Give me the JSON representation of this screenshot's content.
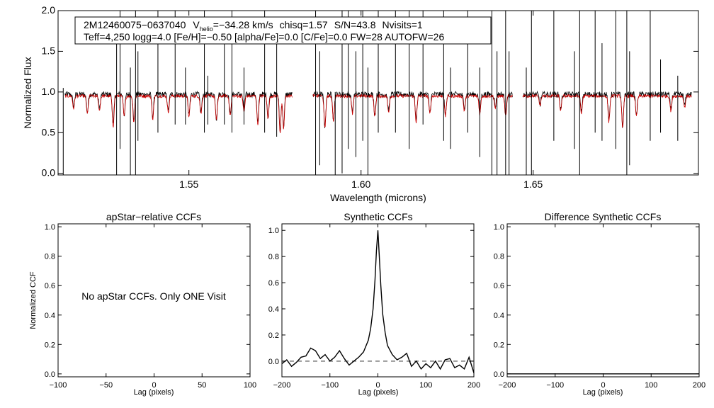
{
  "colors": {
    "observed": "#000000",
    "model": "#cc0000",
    "dashed": "#555555"
  },
  "chart_data": [
    {
      "type": "line",
      "id": "spectrum",
      "xlabel": "Wavelength (microns)",
      "ylabel": "Normalized Flux",
      "xlim": [
        1.512,
        1.698
      ],
      "ylim": [
        -0.02,
        2.0
      ],
      "xticks": [
        1.55,
        1.6,
        1.65
      ],
      "xtick_labels": [
        "1.55",
        "1.60",
        "1.65"
      ],
      "yticks": [
        0.0,
        0.5,
        1.0,
        1.5,
        2.0
      ],
      "ytick_labels": [
        "0.0",
        "0.5",
        "1.0",
        "1.5",
        "2.0"
      ],
      "info": {
        "star_id": "2M12460075−0637040",
        "vhelio_prefix": "V",
        "vhelio_sub": "helio",
        "vhelio_value": "=−34.28 km/s",
        "chisq": "chisq=1.57",
        "sn": "S/N=43.8",
        "nvisits": "Nvisits=1",
        "line2": "Teff=4,250 logg=4.0 [Fe/H]=−0.50 [alpha/Fe]=0.0 [C/Fe]=0.0 FW=28 AUTOFW=26"
      },
      "segments": [
        [
          1.514,
          1.58
        ],
        [
          1.586,
          1.644
        ],
        [
          1.647,
          1.696
        ]
      ],
      "series": [
        {
          "name": "observed",
          "continuum": 0.97
        },
        {
          "name": "model",
          "continuum": 0.95
        }
      ],
      "absorption_lines": [
        {
          "x": 1.5165,
          "depth": 0.15
        },
        {
          "x": 1.5205,
          "depth": 0.22
        },
        {
          "x": 1.524,
          "depth": 0.18
        },
        {
          "x": 1.528,
          "depth": 0.38
        },
        {
          "x": 1.5312,
          "depth": 0.25
        },
        {
          "x": 1.534,
          "depth": 0.32
        },
        {
          "x": 1.5395,
          "depth": 0.28
        },
        {
          "x": 1.544,
          "depth": 0.2
        },
        {
          "x": 1.55,
          "depth": 0.26
        },
        {
          "x": 1.5535,
          "depth": 0.22
        },
        {
          "x": 1.558,
          "depth": 0.3
        },
        {
          "x": 1.562,
          "depth": 0.24
        },
        {
          "x": 1.566,
          "depth": 0.2
        },
        {
          "x": 1.57,
          "depth": 0.35
        },
        {
          "x": 1.573,
          "depth": 0.28
        },
        {
          "x": 1.5765,
          "depth": 0.45
        },
        {
          "x": 1.5775,
          "depth": 0.4
        },
        {
          "x": 1.5895,
          "depth": 0.4
        },
        {
          "x": 1.592,
          "depth": 0.3
        },
        {
          "x": 1.5975,
          "depth": 0.22
        },
        {
          "x": 1.604,
          "depth": 0.25
        },
        {
          "x": 1.608,
          "depth": 0.2
        },
        {
          "x": 1.616,
          "depth": 0.32
        },
        {
          "x": 1.62,
          "depth": 0.22
        },
        {
          "x": 1.6245,
          "depth": 0.25
        },
        {
          "x": 1.63,
          "depth": 0.18
        },
        {
          "x": 1.6345,
          "depth": 0.22
        },
        {
          "x": 1.639,
          "depth": 0.15
        },
        {
          "x": 1.642,
          "depth": 0.25
        },
        {
          "x": 1.652,
          "depth": 0.12
        },
        {
          "x": 1.658,
          "depth": 0.18
        },
        {
          "x": 1.664,
          "depth": 0.22
        },
        {
          "x": 1.672,
          "depth": 0.32
        },
        {
          "x": 1.676,
          "depth": 0.4
        },
        {
          "x": 1.68,
          "depth": 0.25
        },
        {
          "x": 1.69,
          "depth": 0.18
        },
        {
          "x": 1.694,
          "depth": 0.14
        }
      ],
      "spikes": [
        {
          "x": 1.5135,
          "low": -0.05,
          "high": 1.05
        },
        {
          "x": 1.529,
          "low": -0.05,
          "high": 1.7
        },
        {
          "x": 1.53,
          "low": 0.3,
          "high": 2.0
        },
        {
          "x": 1.533,
          "low": -0.05,
          "high": 1.3
        },
        {
          "x": 1.5345,
          "low": -0.05,
          "high": 2.0
        },
        {
          "x": 1.5352,
          "low": 0.4,
          "high": 1.5
        },
        {
          "x": 1.541,
          "low": 0.5,
          "high": 2.0
        },
        {
          "x": 1.546,
          "low": 0.6,
          "high": 2.0
        },
        {
          "x": 1.549,
          "low": 0.6,
          "high": 1.3
        },
        {
          "x": 1.5545,
          "low": 0.5,
          "high": 2.0
        },
        {
          "x": 1.5555,
          "low": 0.6,
          "high": 1.2
        },
        {
          "x": 1.5603,
          "low": 0.6,
          "high": 1.7
        },
        {
          "x": 1.5625,
          "low": 0.5,
          "high": 2.0
        },
        {
          "x": 1.566,
          "low": 0.6,
          "high": 1.3
        },
        {
          "x": 1.572,
          "low": 0.5,
          "high": 2.0
        },
        {
          "x": 1.5755,
          "low": 0.45,
          "high": 1.7
        },
        {
          "x": 1.5868,
          "low": -0.05,
          "high": 2.0
        },
        {
          "x": 1.588,
          "low": 0.1,
          "high": 1.5
        },
        {
          "x": 1.5925,
          "low": -0.05,
          "high": 1.0
        },
        {
          "x": 1.5945,
          "low": 0.0,
          "high": 2.0
        },
        {
          "x": 1.5963,
          "low": 0.3,
          "high": 2.0
        },
        {
          "x": 1.5985,
          "low": 0.2,
          "high": 1.5
        },
        {
          "x": 1.6005,
          "low": 0.4,
          "high": 2.0
        },
        {
          "x": 1.602,
          "low": -0.05,
          "high": 1.3
        },
        {
          "x": 1.605,
          "low": 0.5,
          "high": 2.0
        },
        {
          "x": 1.61,
          "low": 0.5,
          "high": 2.0
        },
        {
          "x": 1.614,
          "low": 0.3,
          "high": 2.0
        },
        {
          "x": 1.618,
          "low": 0.6,
          "high": 2.0
        },
        {
          "x": 1.624,
          "low": 0.4,
          "high": 2.0
        },
        {
          "x": 1.626,
          "low": 0.3,
          "high": 1.3
        },
        {
          "x": 1.631,
          "low": 0.5,
          "high": 2.0
        },
        {
          "x": 1.6345,
          "low": 0.2,
          "high": 1.3
        },
        {
          "x": 1.638,
          "low": -0.05,
          "high": 2.0
        },
        {
          "x": 1.6395,
          "low": -0.05,
          "high": 1.5
        },
        {
          "x": 1.642,
          "low": -0.05,
          "high": 2.0
        },
        {
          "x": 1.643,
          "low": -0.05,
          "high": 1.5
        },
        {
          "x": 1.648,
          "low": -0.05,
          "high": 1.3
        },
        {
          "x": 1.6495,
          "low": -0.05,
          "high": 2.0
        },
        {
          "x": 1.656,
          "low": 0.4,
          "high": 2.0
        },
        {
          "x": 1.662,
          "low": 0.3,
          "high": 1.5
        },
        {
          "x": 1.6635,
          "low": -0.05,
          "high": 2.0
        },
        {
          "x": 1.668,
          "low": 0.5,
          "high": 2.0
        },
        {
          "x": 1.67,
          "low": 0.4,
          "high": 1.6
        },
        {
          "x": 1.674,
          "low": 0.3,
          "high": 2.0
        },
        {
          "x": 1.6772,
          "low": -0.05,
          "high": 2.0
        },
        {
          "x": 1.678,
          "low": 0.1,
          "high": 1.5
        },
        {
          "x": 1.684,
          "low": 0.4,
          "high": 2.0
        },
        {
          "x": 1.687,
          "low": 0.5,
          "high": 1.4
        },
        {
          "x": 1.692,
          "low": 0.4,
          "high": 1.2
        }
      ]
    },
    {
      "type": "line",
      "id": "apstar",
      "title": "apStar−relative CCFs",
      "xlabel": "Lag (pixels)",
      "ylabel": "Normalized CCF",
      "xlim": [
        -100,
        100
      ],
      "ylim": [
        -0.02,
        1.02
      ],
      "xticks": [
        -100,
        -50,
        0,
        50,
        100
      ],
      "xtick_labels": [
        "−100",
        "−50",
        "0",
        "50",
        "100"
      ],
      "yticks": [
        0.0,
        0.2,
        0.4,
        0.6,
        0.8,
        1.0
      ],
      "ytick_labels": [
        "0.0",
        "0.2",
        "0.4",
        "0.6",
        "0.8",
        "1.0"
      ],
      "message": "No apStar CCFs.  Only ONE Visit",
      "series": []
    },
    {
      "type": "line",
      "id": "synthetic",
      "title": "Synthetic CCFs",
      "xlabel": "Lag (pixels)",
      "xlim": [
        -200,
        200
      ],
      "ylim": [
        -0.12,
        1.05
      ],
      "xticks": [
        -200,
        -100,
        0,
        100,
        200
      ],
      "xtick_labels": [
        "−200",
        "−100",
        "0",
        "100",
        "200"
      ],
      "yticks": [
        0.0,
        0.2,
        0.4,
        0.6,
        0.8,
        1.0
      ],
      "ytick_labels": [
        "0.0",
        "0.2",
        "0.4",
        "0.6",
        "0.8",
        "1.0"
      ],
      "dashed_y": 0.0,
      "series": [
        {
          "name": "ccf",
          "x": [
            -200,
            -190,
            -180,
            -170,
            -160,
            -150,
            -140,
            -130,
            -120,
            -110,
            -100,
            -90,
            -80,
            -70,
            -60,
            -50,
            -40,
            -30,
            -20,
            -15,
            -10,
            -6,
            -3,
            0,
            3,
            6,
            10,
            15,
            20,
            30,
            40,
            50,
            60,
            70,
            80,
            90,
            100,
            110,
            120,
            130,
            140,
            150,
            160,
            170,
            180,
            190,
            200
          ],
          "y": [
            -0.02,
            0.01,
            -0.04,
            -0.01,
            0.03,
            0.04,
            0.1,
            0.08,
            0.02,
            0.05,
            0.0,
            0.03,
            0.08,
            0.02,
            -0.03,
            0.0,
            0.03,
            0.07,
            0.16,
            0.25,
            0.4,
            0.62,
            0.85,
            1.0,
            0.8,
            0.58,
            0.36,
            0.22,
            0.12,
            0.05,
            0.01,
            0.03,
            0.06,
            -0.04,
            0.0,
            -0.06,
            -0.02,
            -0.05,
            0.0,
            -0.06,
            0.01,
            0.02,
            -0.05,
            -0.03,
            -0.06,
            0.03,
            -0.09
          ]
        }
      ]
    },
    {
      "type": "line",
      "id": "difference",
      "title": "Difference Synthetic CCFs",
      "xlabel": "Lag (pixels)",
      "xlim": [
        -200,
        200
      ],
      "ylim": [
        -0.02,
        1.02
      ],
      "xticks": [
        -200,
        -100,
        0,
        100,
        200
      ],
      "xtick_labels": [
        "−200",
        "−100",
        "0",
        "100",
        "200"
      ],
      "yticks": [
        0.0,
        0.2,
        0.4,
        0.6,
        0.8,
        1.0
      ],
      "ytick_labels": [
        "0.0",
        "0.2",
        "0.4",
        "0.6",
        "0.8",
        "1.0"
      ],
      "series": [
        {
          "name": "diff",
          "x": [
            -200,
            200
          ],
          "y": [
            0.0,
            0.0
          ]
        }
      ]
    }
  ]
}
